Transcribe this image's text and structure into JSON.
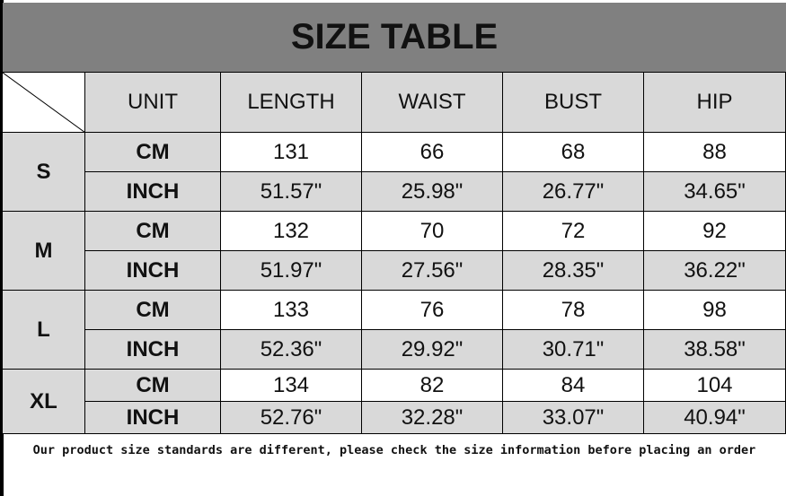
{
  "title": "SIZE TABLE",
  "headers": [
    "UNIT",
    "LENGTH",
    "WAIST",
    "BUST",
    "HIP"
  ],
  "sizes": [
    {
      "size": "S",
      "rows": [
        [
          "CM",
          "131",
          "66",
          "68",
          "88"
        ],
        [
          "INCH",
          "51.57\"",
          "25.98\"",
          "26.77\"",
          "34.65\""
        ]
      ]
    },
    {
      "size": "M",
      "rows": [
        [
          "CM",
          "132",
          "70",
          "72",
          "92"
        ],
        [
          "INCH",
          "51.97\"",
          "27.56\"",
          "28.35\"",
          "36.22\""
        ]
      ]
    },
    {
      "size": "L",
      "rows": [
        [
          "CM",
          "133",
          "76",
          "78",
          "98"
        ],
        [
          "INCH",
          "52.36\"",
          "29.92\"",
          "30.71\"",
          "38.58\""
        ]
      ]
    },
    {
      "size": "XL",
      "rows": [
        [
          "CM",
          "134",
          "82",
          "84",
          "104"
        ],
        [
          "INCH",
          "52.76\"",
          "32.28\"",
          "33.07\"",
          "40.94\""
        ]
      ]
    }
  ],
  "footer": "Our product size standards are different, please check the size information before placing an order",
  "colors": {
    "title_bg": "#808080",
    "cell_gray": "#d9d9d9"
  }
}
